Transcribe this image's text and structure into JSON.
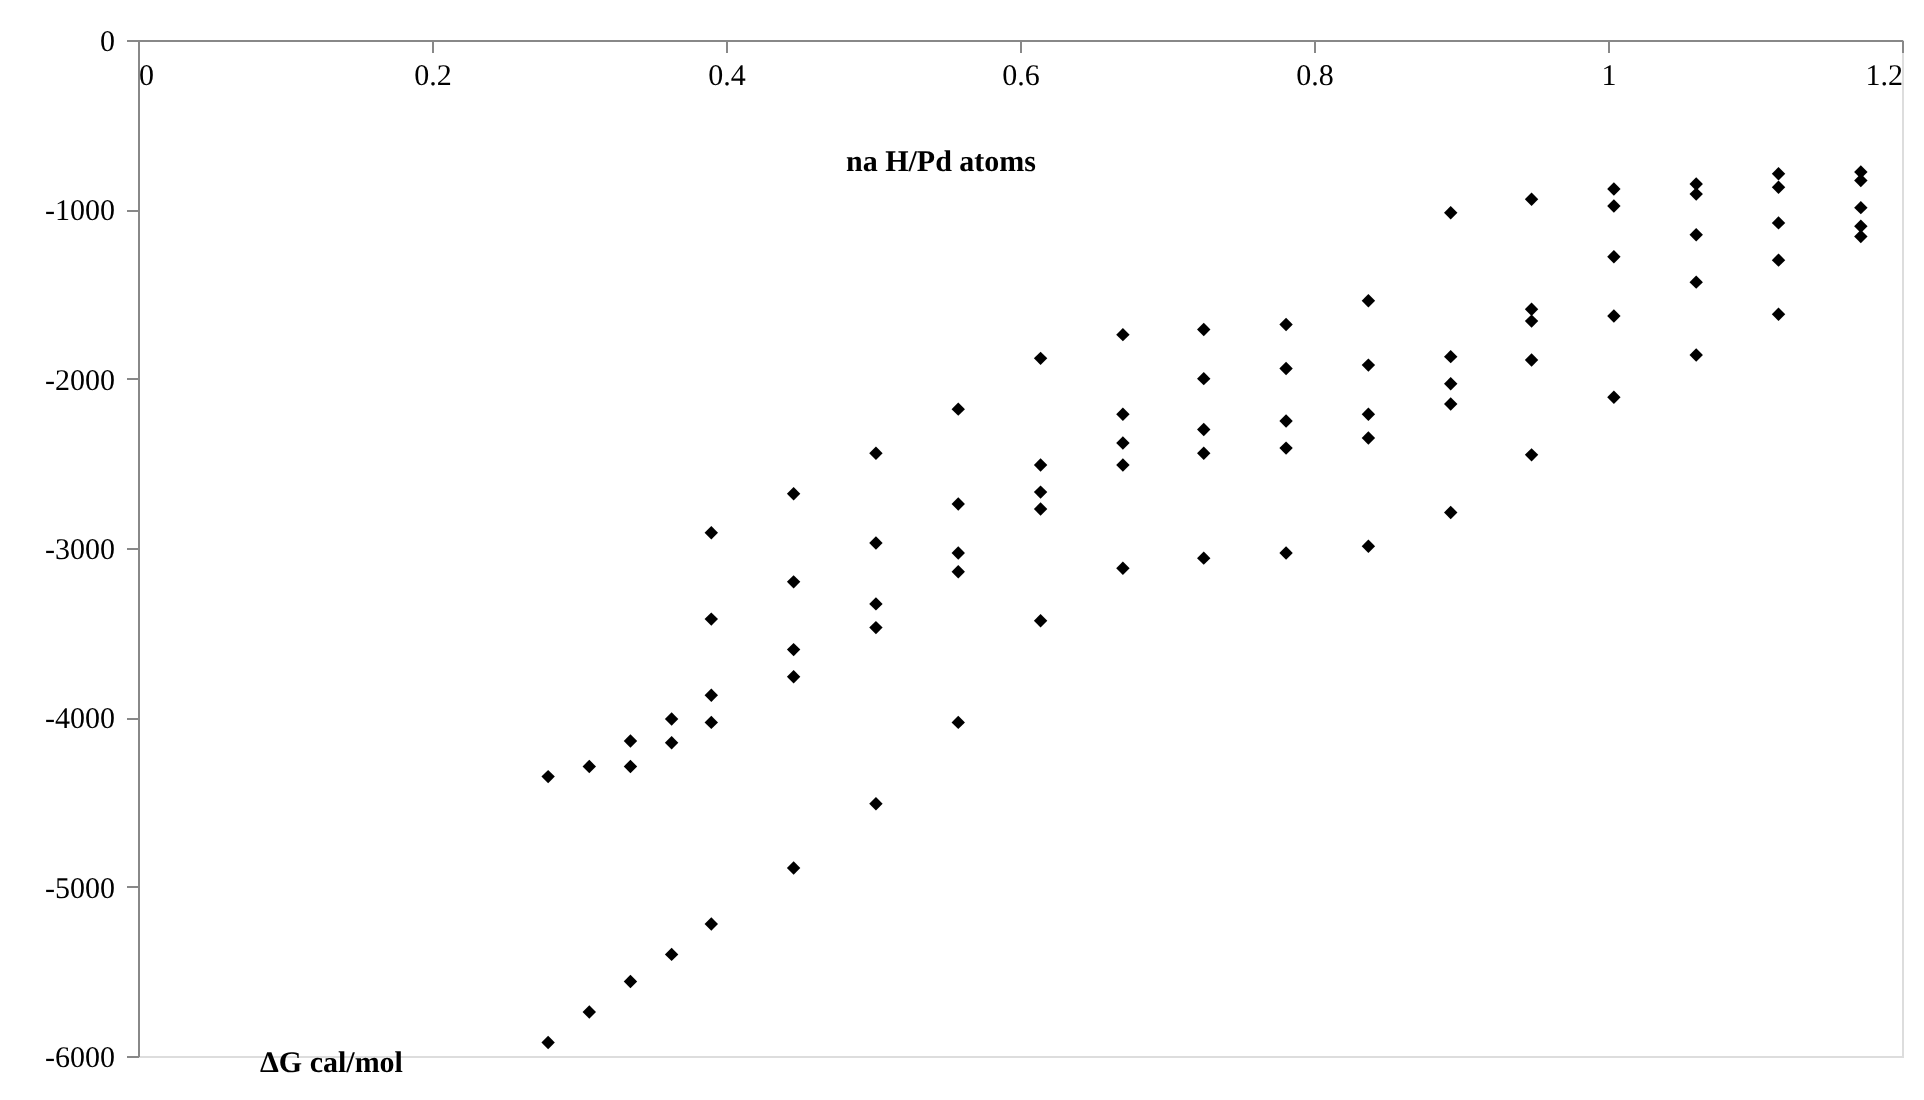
{
  "chart_data": {
    "type": "scatter",
    "xlabel": "na H/Pd atoms",
    "annotations": [
      "ΔG cal/mol"
    ],
    "xlim": [
      0,
      1.2
    ],
    "ylim": [
      -6000,
      0
    ],
    "xticks": [
      0,
      0.2,
      0.4,
      0.6,
      0.8,
      1,
      1.2
    ],
    "yticks": [
      0,
      -1000,
      -2000,
      -3000,
      -4000,
      -5000,
      -6000
    ],
    "grid": false,
    "marker": "diamond",
    "series": [
      {
        "color": "#000000",
        "x": [
          0.279,
          0.279,
          0.307,
          0.307,
          0.335,
          0.335,
          0.335,
          0.363,
          0.363,
          0.363,
          0.39,
          0.39,
          0.39,
          0.39,
          0.39,
          0.446,
          0.446,
          0.446,
          0.446,
          0.446,
          0.502,
          0.502,
          0.502,
          0.502,
          0.502,
          0.558,
          0.558,
          0.558,
          0.558,
          0.558,
          0.614,
          0.614,
          0.614,
          0.614,
          0.614,
          0.67,
          0.67,
          0.67,
          0.67,
          0.67,
          0.725,
          0.725,
          0.725,
          0.725,
          0.725,
          0.781,
          0.781,
          0.781,
          0.781,
          0.781,
          0.837,
          0.837,
          0.837,
          0.837,
          0.837,
          0.893,
          0.893,
          0.893,
          0.893,
          0.893,
          0.948,
          0.948,
          0.948,
          0.948,
          0.948,
          1.004,
          1.004,
          1.004,
          1.004,
          1.004,
          1.06,
          1.06,
          1.06,
          1.06,
          1.06,
          1.116,
          1.116,
          1.116,
          1.116,
          1.116,
          1.172,
          1.172,
          1.172,
          1.172,
          1.172
        ],
        "values": [
          -4350,
          -5920,
          -4290,
          -5740,
          -4140,
          -4290,
          -5560,
          -4010,
          -4150,
          -5400,
          -2910,
          -3420,
          -3870,
          -4030,
          -5220,
          -2680,
          -3200,
          -3600,
          -3760,
          -4890,
          -2440,
          -2970,
          -3330,
          -3470,
          -4510,
          -2180,
          -2740,
          -3030,
          -3140,
          -4030,
          -1880,
          -2510,
          -2670,
          -2770,
          -3430,
          -1740,
          -2210,
          -2380,
          -2510,
          -3120,
          -1710,
          -2000,
          -2300,
          -2440,
          -3060,
          -1680,
          -1940,
          -2250,
          -2410,
          -3030,
          -1540,
          -1920,
          -2210,
          -2350,
          -2990,
          -1020,
          -1870,
          -2030,
          -2150,
          -2790,
          -940,
          -1590,
          -1660,
          -1890,
          -2450,
          -880,
          -980,
          -1280,
          -1630,
          -2110,
          -850,
          -910,
          -1150,
          -1430,
          -1860,
          -790,
          -870,
          -1080,
          -1300,
          -1620,
          -780,
          -830,
          -990,
          -1100,
          -1160
        ]
      }
    ]
  }
}
